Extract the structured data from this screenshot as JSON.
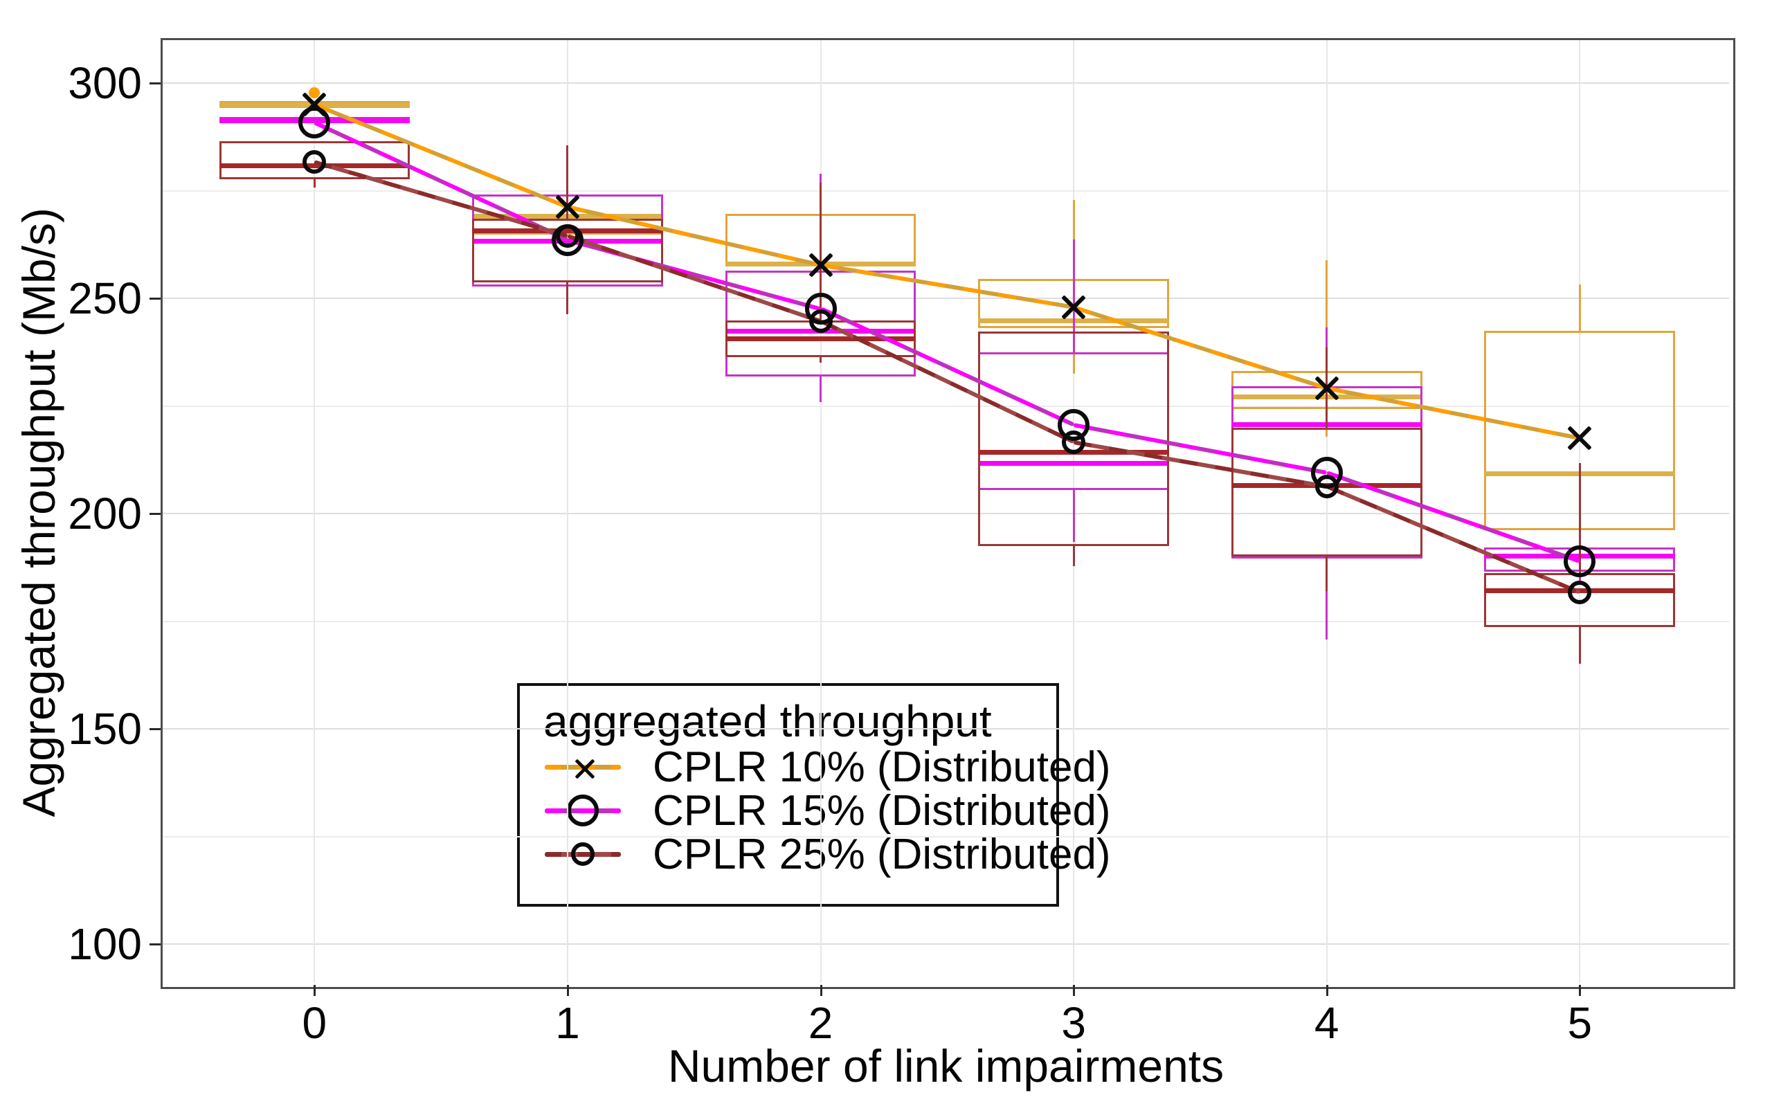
{
  "chart_data": {
    "type": "boxplot+line",
    "title": "",
    "xlabel": "Number of link impairments",
    "ylabel": "Aggregated throughput (Mb/s)",
    "xlim": [
      -0.6,
      5.59
    ],
    "ylim": [
      91,
      310
    ],
    "x_ticks": [
      0,
      1,
      2,
      3,
      4,
      5
    ],
    "y_ticks": [
      100,
      150,
      200,
      250,
      300
    ],
    "y_minor_ticks": [
      125,
      175,
      225,
      275
    ],
    "grid": "on",
    "box_halfwidth_units": 0.377,
    "legend": {
      "title": "aggregated throughput",
      "position": "inside-bottom-center"
    },
    "series": [
      {
        "name": "CPLR 10% (Distributed)",
        "marker": "x",
        "marker_size": 44,
        "colors": {
          "box": "#e2a43c",
          "median": "#dcb14a",
          "line_a": "#ff9e00",
          "line_b": "#d2a034"
        },
        "x": [
          0,
          1,
          2,
          3,
          4,
          5
        ],
        "means": [
          295.0,
          271.2,
          257.7,
          247.9,
          229.1,
          217.5
        ],
        "boxes": [
          {
            "x": 0,
            "lo": 294.2,
            "q1": 294.2,
            "med": 295.0,
            "q3": 295.8,
            "hi": 295.8
          },
          {
            "x": 1,
            "lo": 264.8,
            "q1": 264.8,
            "med": 269.1,
            "q3": 269.5,
            "hi": 269.5
          },
          {
            "x": 2,
            "lo": 257.6,
            "q1": 257.6,
            "med": 258.1,
            "q3": 269.6,
            "hi": 269.6
          },
          {
            "x": 3,
            "lo": 232.5,
            "q1": 243.1,
            "med": 244.9,
            "q3": 254.5,
            "hi": 272.8
          },
          {
            "x": 4,
            "lo": 217.8,
            "q1": 224.3,
            "med": 227.2,
            "q3": 233.1,
            "hi": 258.8
          },
          {
            "x": 5,
            "lo": 196.1,
            "q1": 196.1,
            "med": 209.3,
            "q3": 242.4,
            "hi": 253.2
          }
        ],
        "outliers": [
          {
            "x": 0,
            "y": 297.7
          }
        ]
      },
      {
        "name": "CPLR 15% (Distributed)",
        "marker": "circle",
        "marker_size": 46,
        "colors": {
          "box": "#c534c5",
          "median": "#f704f7",
          "line_a": "#ff00ff",
          "line_b": "#c22ec2"
        },
        "x": [
          0,
          1,
          2,
          3,
          4,
          5
        ],
        "means": [
          290.8,
          263.6,
          247.6,
          220.6,
          209.5,
          188.9
        ],
        "boxes": [
          {
            "x": 0,
            "lo": 290.7,
            "q1": 290.7,
            "med": 291.4,
            "q3": 292.1,
            "hi": 292.1
          },
          {
            "x": 1,
            "lo": 252.7,
            "q1": 252.7,
            "med": 263.3,
            "q3": 274.1,
            "hi": 274.1
          },
          {
            "x": 2,
            "lo": 225.9,
            "q1": 231.8,
            "med": 242.4,
            "q3": 256.4,
            "hi": 278.9
          },
          {
            "x": 3,
            "lo": 193.4,
            "q1": 205.5,
            "med": 211.7,
            "q3": 237.5,
            "hi": 263.7
          },
          {
            "x": 4,
            "lo": 170.7,
            "q1": 189.6,
            "med": 220.7,
            "q3": 229.6,
            "hi": 243.2
          },
          {
            "x": 5,
            "lo": 184.0,
            "q1": 186.5,
            "med": 190.2,
            "q3": 192.1,
            "hi": 193.2
          }
        ],
        "outliers": []
      },
      {
        "name": "CPLR 25% (Distributed)",
        "marker": "circle",
        "marker_size": 34,
        "colors": {
          "box": "#9c3636",
          "median": "#a42828",
          "line_a": "#8b2a2a",
          "line_b": "#9f4848"
        },
        "x": [
          0,
          1,
          2,
          3,
          4,
          5
        ],
        "means": [
          281.7,
          264.5,
          244.7,
          216.6,
          206.3,
          181.7
        ],
        "boxes": [
          {
            "x": 0,
            "lo": 275.7,
            "q1": 277.7,
            "med": 280.9,
            "q3": 286.5,
            "hi": 286.5
          },
          {
            "x": 1,
            "lo": 246.3,
            "q1": 253.7,
            "med": 265.8,
            "q3": 268.5,
            "hi": 285.5
          },
          {
            "x": 2,
            "lo": 235.0,
            "q1": 236.3,
            "med": 240.7,
            "q3": 244.9,
            "hi": 276.8
          },
          {
            "x": 3,
            "lo": 187.8,
            "q1": 192.5,
            "med": 214.3,
            "q3": 242.3,
            "hi": 242.3
          },
          {
            "x": 4,
            "lo": 182.0,
            "q1": 190.0,
            "med": 206.6,
            "q3": 219.9,
            "hi": 238.6
          },
          {
            "x": 5,
            "lo": 165.1,
            "q1": 173.7,
            "med": 182.2,
            "q3": 186.2,
            "hi": 211.7
          }
        ],
        "outliers": []
      }
    ]
  }
}
